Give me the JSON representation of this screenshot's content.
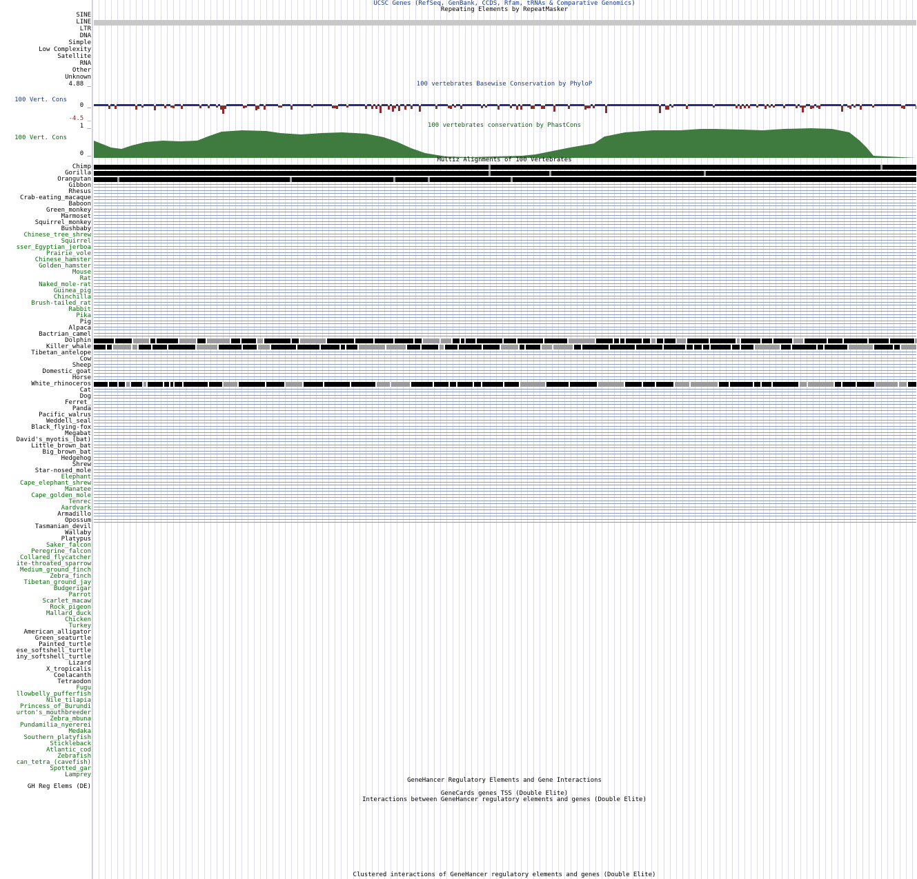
{
  "tracks": {
    "ucsc_genes_title": "UCSC Genes (RefSeq, GenBank, CCDS, Rfam, tRNAs & Comparative Genomics)",
    "repeatmasker_title": "Repeating Elements by RepeatMasker",
    "repeat_classes": [
      "SINE",
      "LINE",
      "LTR",
      "DNA",
      "Simple",
      "Low Complexity",
      "Satellite",
      "RNA",
      "Other",
      "Unknown"
    ],
    "phylop": {
      "title": "100 vertebrates Basewise Conservation by PhyloP",
      "label": "100 Vert. Cons",
      "ymax": "4.88 _",
      "yzero": "0 _",
      "ymin": "-4.5 _"
    },
    "phastcons": {
      "title": "100 vertebrates conservation by PhastCons",
      "label": "100 Vert. Cons",
      "ymax": "1 _",
      "yzero": "0 _"
    },
    "multiz_title": "Multiz Alignments of 100 Vertebrates",
    "species": [
      {
        "name": "Chimp",
        "c": "blk"
      },
      {
        "name": "Gorilla",
        "c": "blk"
      },
      {
        "name": "Orangutan",
        "c": "blk"
      },
      {
        "name": "Gibbon",
        "c": "blk"
      },
      {
        "name": "Rhesus",
        "c": "blk"
      },
      {
        "name": "Crab-eating_macaque",
        "c": "blk"
      },
      {
        "name": "Baboon",
        "c": "blk"
      },
      {
        "name": "Green_monkey",
        "c": "blk"
      },
      {
        "name": "Marmoset",
        "c": "blk"
      },
      {
        "name": "Squirrel_monkey",
        "c": "blk"
      },
      {
        "name": "Bushbaby",
        "c": "blk"
      },
      {
        "name": "Chinese_tree_shrew",
        "c": "grn"
      },
      {
        "name": "Squirrel",
        "c": "grn"
      },
      {
        "name": "sser_Egyptian_jerboa",
        "c": "grn"
      },
      {
        "name": "Prairie_vole",
        "c": "grn"
      },
      {
        "name": "Chinese_hamster",
        "c": "grn"
      },
      {
        "name": "Golden_hamster",
        "c": "grn"
      },
      {
        "name": "Mouse",
        "c": "grn"
      },
      {
        "name": "Rat",
        "c": "grn"
      },
      {
        "name": "Naked_mole-rat",
        "c": "grn"
      },
      {
        "name": "Guinea_pig",
        "c": "grn"
      },
      {
        "name": "Chinchilla",
        "c": "grn"
      },
      {
        "name": "Brush-tailed_rat",
        "c": "grn"
      },
      {
        "name": "Rabbit",
        "c": "grn"
      },
      {
        "name": "Pika",
        "c": "grn"
      },
      {
        "name": "Pig",
        "c": "blk"
      },
      {
        "name": "Alpaca",
        "c": "blk"
      },
      {
        "name": "Bactrian_camel",
        "c": "blk"
      },
      {
        "name": "Dolphin",
        "c": "blk"
      },
      {
        "name": "Killer_whale",
        "c": "blk"
      },
      {
        "name": "Tibetan_antelope",
        "c": "blk"
      },
      {
        "name": "Cow",
        "c": "blk"
      },
      {
        "name": "Sheep",
        "c": "blk"
      },
      {
        "name": "Domestic_goat",
        "c": "blk"
      },
      {
        "name": "Horse",
        "c": "blk"
      },
      {
        "name": "White_rhinoceros",
        "c": "blk"
      },
      {
        "name": "Cat",
        "c": "blk"
      },
      {
        "name": "Dog",
        "c": "blk"
      },
      {
        "name": "Ferret_",
        "c": "blk"
      },
      {
        "name": "Panda",
        "c": "blk"
      },
      {
        "name": "Pacific_walrus",
        "c": "blk"
      },
      {
        "name": "Weddell_seal",
        "c": "blk"
      },
      {
        "name": "Black_flying-fox",
        "c": "blk"
      },
      {
        "name": "Megabat",
        "c": "blk"
      },
      {
        "name": "David's_myotis_(bat)",
        "c": "blk"
      },
      {
        "name": "Little_brown_bat",
        "c": "blk"
      },
      {
        "name": "Big_brown_bat",
        "c": "blk"
      },
      {
        "name": "Hedgehog",
        "c": "blk"
      },
      {
        "name": "Shrew",
        "c": "blk"
      },
      {
        "name": "Star-nosed_mole",
        "c": "blk"
      },
      {
        "name": "Elephant",
        "c": "grn"
      },
      {
        "name": "Cape_elephant_shrew",
        "c": "grn"
      },
      {
        "name": "Manatee",
        "c": "grn"
      },
      {
        "name": "Cape_golden_mole",
        "c": "grn"
      },
      {
        "name": "Tenrec",
        "c": "grn"
      },
      {
        "name": "Aardvark",
        "c": "grn"
      },
      {
        "name": "Armadillo",
        "c": "blk"
      },
      {
        "name": "Opossum",
        "c": "blk"
      },
      {
        "name": "Tasmanian_devil",
        "c": "blk"
      },
      {
        "name": "Wallaby",
        "c": "blk"
      },
      {
        "name": "Platypus",
        "c": "blk"
      },
      {
        "name": "Saker_falcon",
        "c": "grn"
      },
      {
        "name": "Peregrine_falcon",
        "c": "grn"
      },
      {
        "name": "Collared_flycatcher",
        "c": "grn"
      },
      {
        "name": "ite-throated_sparrow",
        "c": "grn"
      },
      {
        "name": "Medium_ground_finch",
        "c": "grn"
      },
      {
        "name": "Zebra_finch",
        "c": "grn"
      },
      {
        "name": "Tibetan_ground_jay",
        "c": "grn"
      },
      {
        "name": "Budgerigar",
        "c": "grn"
      },
      {
        "name": "Parrot",
        "c": "grn"
      },
      {
        "name": "Scarlet_macaw",
        "c": "grn"
      },
      {
        "name": "Rock_pigeon",
        "c": "grn"
      },
      {
        "name": "Mallard_duck",
        "c": "grn"
      },
      {
        "name": "Chicken",
        "c": "grn"
      },
      {
        "name": "Turkey",
        "c": "grn"
      },
      {
        "name": "American_alligator",
        "c": "blk"
      },
      {
        "name": "Green_seaturtle",
        "c": "blk"
      },
      {
        "name": "Painted_turtle",
        "c": "blk"
      },
      {
        "name": "ese_softshell_turtle",
        "c": "blk"
      },
      {
        "name": "iny_softshell_turtle",
        "c": "blk"
      },
      {
        "name": "Lizard",
        "c": "blk"
      },
      {
        "name": "X_tropicalis",
        "c": "blk"
      },
      {
        "name": "Coelacanth",
        "c": "blk"
      },
      {
        "name": "Tetraodon",
        "c": "blk"
      },
      {
        "name": "Fugu",
        "c": "grn"
      },
      {
        "name": "llowbelly_pufferfish",
        "c": "grn"
      },
      {
        "name": "Nile_tilapia",
        "c": "grn"
      },
      {
        "name": "Princess_of_Burundi",
        "c": "grn"
      },
      {
        "name": "urton's_mouthbreeder",
        "c": "grn"
      },
      {
        "name": "Zebra_mbuna",
        "c": "grn"
      },
      {
        "name": "Pundamilia_nyererei",
        "c": "grn"
      },
      {
        "name": "Medaka",
        "c": "grn"
      },
      {
        "name": "Southern_platyfish",
        "c": "grn"
      },
      {
        "name": "Stickleback",
        "c": "grn"
      },
      {
        "name": "Atlantic_cod",
        "c": "grn"
      },
      {
        "name": "Zebrafish",
        "c": "grn"
      },
      {
        "name": "can_tetra_(cavefish)",
        "c": "grn"
      },
      {
        "name": "Spotted_gar",
        "c": "grn"
      },
      {
        "name": "Lamprey",
        "c": "grn"
      }
    ],
    "genehancer_title": "GeneHancer Regulatory Elements and Gene Interactions",
    "gh_label": "GH Reg Elems (DE)",
    "genecards_title": "GeneCards genes TSS (Double Elite)",
    "interactions_title": "Interactions between GeneHancer regulatory elements and genes (Double Elite)",
    "clustered_title": "Clustered interactions of GeneHancer regulatory elements and genes (Double Elite)"
  },
  "colors": {
    "phylop_pos": "#2a2a8a",
    "phylop_neg": "#8a2a2a",
    "phastcons": "#3f7a3f",
    "align_dark": "#000000",
    "align_gray": "#999999",
    "line_repeat": "#c8c8c8"
  }
}
